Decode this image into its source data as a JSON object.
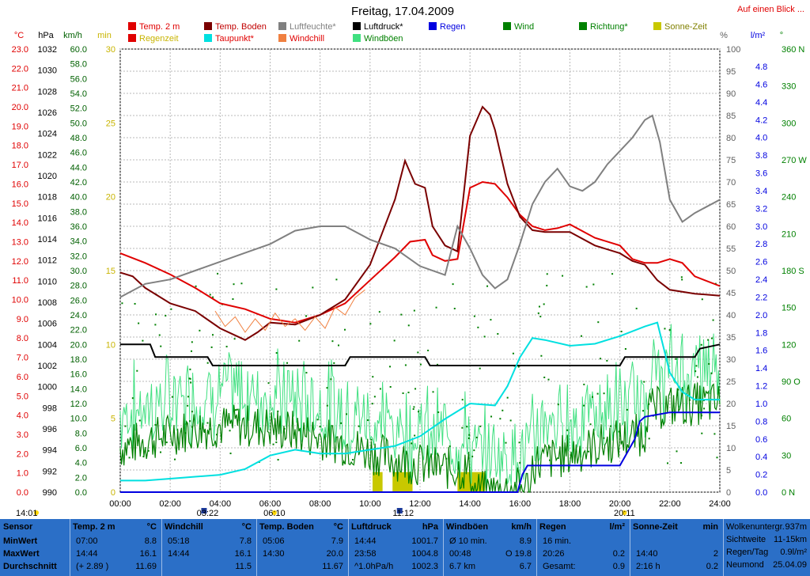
{
  "page": {
    "title": "Freitag, 17.04.2009",
    "link": "Auf einen Blick ..."
  },
  "legend": [
    {
      "label": "Temp. 2 m",
      "color": "#e00000",
      "text_color": "#e00000"
    },
    {
      "label": "Regenzeit",
      "color": "#e00000",
      "text_color": "#c8b400"
    },
    {
      "label": "Temp. Boden",
      "color": "#7a0000",
      "text_color": "#c00000"
    },
    {
      "label": "Taupunkt*",
      "color": "#00e0e0",
      "text_color": "#e00000"
    },
    {
      "label": "Luftfeuchte*",
      "color": "#808080",
      "text_color": "#808080"
    },
    {
      "label": "Windchill",
      "color": "#f08040",
      "text_color": "#e00000"
    },
    {
      "label": "Luftdruck*",
      "color": "#000000",
      "text_color": "#000000"
    },
    {
      "label": "Windböen",
      "color": "#40e080",
      "text_color": "#008000"
    },
    {
      "label": "Regen",
      "color": "#0000e0",
      "text_color": "#0000e0"
    },
    {
      "label": "Wind",
      "color": "#008000",
      "text_color": "#008000"
    },
    {
      "label": "Richtung*",
      "color": "#008000",
      "text_color": "#008000"
    },
    {
      "label": "Sonne-Zeit",
      "color": "#c8c800",
      "text_color": "#808000"
    }
  ],
  "axes": {
    "celsius": {
      "unit": "°C",
      "ticks": [
        "23.0",
        "22.0",
        "21.0",
        "20.0",
        "19.0",
        "18.0",
        "17.0",
        "16.0",
        "15.0",
        "14.0",
        "13.0",
        "12.0",
        "11.0",
        "10.0",
        "9.0",
        "8.0",
        "7.0",
        "6.0",
        "5.0",
        "4.0",
        "3.0",
        "2.0",
        "1.0",
        "0.0"
      ],
      "color": "#e00000"
    },
    "hpa": {
      "unit": "hPa",
      "ticks": [
        "1032",
        "1030",
        "1028",
        "1026",
        "1024",
        "1022",
        "1020",
        "1018",
        "1016",
        "1014",
        "1012",
        "1010",
        "1008",
        "1006",
        "1004",
        "1002",
        "1000",
        "998",
        "996",
        "994",
        "992",
        "990"
      ],
      "color": "#000000"
    },
    "kmh": {
      "unit": "km/h",
      "ticks": [
        "60.0",
        "58.0",
        "56.0",
        "54.0",
        "52.0",
        "50.0",
        "48.0",
        "46.0",
        "44.0",
        "42.0",
        "40.0",
        "38.0",
        "36.0",
        "34.0",
        "32.0",
        "30.0",
        "28.0",
        "26.0",
        "24.0",
        "22.0",
        "20.0",
        "18.0",
        "16.0",
        "14.0",
        "12.0",
        "10.0",
        "8.0",
        "6.0",
        "4.0",
        "2.0",
        "0.0"
      ],
      "color": "#006000"
    },
    "min": {
      "unit": "min",
      "ticks": [
        "30",
        "25",
        "20",
        "15",
        "10",
        "5",
        "0"
      ],
      "color": "#c8b400"
    },
    "percent": {
      "unit": "%",
      "ticks": [
        "100",
        "95",
        "90",
        "85",
        "80",
        "75",
        "70",
        "65",
        "60",
        "55",
        "50",
        "45",
        "40",
        "35",
        "30",
        "25",
        "20",
        "15",
        "10",
        "5",
        "0"
      ],
      "color": "#606060"
    },
    "rain": {
      "unit": "l/m²",
      "ticks": [
        "4.8",
        "4.6",
        "4.4",
        "4.2",
        "4.0",
        "3.8",
        "3.6",
        "3.4",
        "3.2",
        "3.0",
        "2.8",
        "2.6",
        "2.4",
        "2.2",
        "2.0",
        "1.8",
        "1.6",
        "1.4",
        "1.2",
        "1.0",
        "0.8",
        "0.6",
        "0.4",
        "0.2",
        "0.0"
      ],
      "color": "#0000e0"
    },
    "dir": {
      "unit": "°",
      "ticks": [
        "360 N",
        "330",
        "300",
        "270 W",
        "240",
        "210",
        "180 S",
        "150",
        "120",
        "90 O",
        "60",
        "30",
        "0 N"
      ],
      "color": "#008000"
    },
    "time": {
      "ticks": [
        "00:00",
        "02:00",
        "04:00",
        "06:00",
        "08:00",
        "10:00",
        "12:00",
        "14:00",
        "16:00",
        "18:00",
        "20:00",
        "22:00",
        "24:00"
      ]
    }
  },
  "markers": [
    {
      "label": "14:01",
      "type": "sun"
    },
    {
      "label": "03:22",
      "type": "moon"
    },
    {
      "label": "06:10",
      "type": "sun"
    },
    {
      "label": "11:12",
      "type": "moon"
    },
    {
      "label": "20:11",
      "type": "sun"
    }
  ],
  "chart_data": {
    "type": "line",
    "title": "Freitag, 17.04.2009",
    "x_unit": "hours",
    "xlim": [
      0,
      24
    ],
    "series": [
      {
        "name": "Temp. 2 m",
        "unit": "°C",
        "color": "#e00000",
        "points": [
          [
            0,
            12.4
          ],
          [
            1,
            11.9
          ],
          [
            2,
            11.3
          ],
          [
            3,
            10.6
          ],
          [
            4,
            9.8
          ],
          [
            5,
            9.5
          ],
          [
            6,
            9.0
          ],
          [
            7,
            8.8
          ],
          [
            8,
            9.2
          ],
          [
            9,
            9.8
          ],
          [
            10,
            11.0
          ],
          [
            11,
            12.2
          ],
          [
            11.6,
            13.0
          ],
          [
            12.2,
            13.1
          ],
          [
            12.5,
            12.3
          ],
          [
            13.0,
            12.0
          ],
          [
            13.5,
            12.1
          ],
          [
            14.0,
            15.8
          ],
          [
            14.5,
            16.1
          ],
          [
            15.0,
            16.0
          ],
          [
            15.5,
            15.3
          ],
          [
            16.0,
            14.4
          ],
          [
            16.5,
            13.8
          ],
          [
            17.0,
            13.6
          ],
          [
            17.5,
            13.7
          ],
          [
            18.0,
            13.9
          ],
          [
            19.0,
            13.2
          ],
          [
            20.0,
            12.8
          ],
          [
            20.5,
            12.1
          ],
          [
            21.0,
            11.9
          ],
          [
            21.5,
            11.9
          ],
          [
            22.0,
            12.1
          ],
          [
            22.5,
            11.9
          ],
          [
            23.0,
            11.2
          ],
          [
            24.0,
            10.7
          ]
        ]
      },
      {
        "name": "Temp. Boden",
        "unit": "°C",
        "color": "#7a0000",
        "points": [
          [
            0,
            11.4
          ],
          [
            0.5,
            11.2
          ],
          [
            1,
            10.6
          ],
          [
            2,
            9.8
          ],
          [
            3,
            9.4
          ],
          [
            4,
            8.5
          ],
          [
            5,
            7.9
          ],
          [
            5.5,
            8.3
          ],
          [
            6,
            8.8
          ],
          [
            7,
            8.7
          ],
          [
            8,
            9.2
          ],
          [
            9,
            10.0
          ],
          [
            10,
            11.8
          ],
          [
            10.5,
            13.5
          ],
          [
            11.0,
            15.2
          ],
          [
            11.4,
            17.2
          ],
          [
            11.8,
            16.0
          ],
          [
            12.2,
            15.8
          ],
          [
            12.5,
            13.8
          ],
          [
            13.0,
            12.8
          ],
          [
            13.5,
            12.5
          ],
          [
            14.0,
            18.5
          ],
          [
            14.5,
            20.0
          ],
          [
            14.8,
            19.6
          ],
          [
            15.0,
            18.8
          ],
          [
            15.5,
            16.0
          ],
          [
            16.0,
            14.3
          ],
          [
            16.5,
            13.6
          ],
          [
            17.0,
            13.5
          ],
          [
            18.0,
            13.5
          ],
          [
            19.0,
            12.8
          ],
          [
            20.0,
            12.4
          ],
          [
            20.5,
            12.0
          ],
          [
            21.0,
            11.8
          ],
          [
            21.5,
            11.0
          ],
          [
            22.0,
            10.5
          ],
          [
            23.0,
            10.3
          ],
          [
            24.0,
            10.2
          ]
        ]
      },
      {
        "name": "Luftfeuchte*",
        "unit": "%",
        "color": "#808080",
        "points": [
          [
            0,
            44
          ],
          [
            1,
            47
          ],
          [
            2,
            48
          ],
          [
            3,
            50
          ],
          [
            4,
            52
          ],
          [
            5,
            54
          ],
          [
            6,
            56
          ],
          [
            7,
            59
          ],
          [
            8,
            60
          ],
          [
            9,
            60
          ],
          [
            10,
            57
          ],
          [
            11,
            55
          ],
          [
            12,
            51
          ],
          [
            13,
            49
          ],
          [
            13.5,
            60
          ],
          [
            14.0,
            55
          ],
          [
            14.5,
            49
          ],
          [
            15.0,
            46
          ],
          [
            15.5,
            48
          ],
          [
            16.0,
            56
          ],
          [
            16.5,
            65
          ],
          [
            17.0,
            70
          ],
          [
            17.5,
            73
          ],
          [
            18.0,
            69
          ],
          [
            18.5,
            68
          ],
          [
            19.0,
            70
          ],
          [
            19.5,
            74
          ],
          [
            20.0,
            77
          ],
          [
            20.5,
            80
          ],
          [
            21.0,
            84
          ],
          [
            21.3,
            85
          ],
          [
            21.6,
            79
          ],
          [
            22.0,
            66
          ],
          [
            22.5,
            61
          ],
          [
            23.0,
            63
          ],
          [
            24.0,
            66
          ]
        ]
      },
      {
        "name": "Windchill",
        "unit": "°C",
        "color": "#f08040",
        "points": [
          [
            3.8,
            9.4
          ],
          [
            4.2,
            8.6
          ],
          [
            4.6,
            9.1
          ],
          [
            5.0,
            8.3
          ],
          [
            5.4,
            9.0
          ],
          [
            5.8,
            8.4
          ],
          [
            6.2,
            9.3
          ],
          [
            6.6,
            8.6
          ],
          [
            7.0,
            9.0
          ],
          [
            7.4,
            8.4
          ],
          [
            7.8,
            9.1
          ],
          [
            8.2,
            8.5
          ],
          [
            8.6,
            9.6
          ],
          [
            9.0,
            9.2
          ],
          [
            9.4,
            10.1
          ],
          [
            9.8,
            10.5
          ]
        ]
      },
      {
        "name": "Luftdruck*",
        "unit": "hPa",
        "color": "#000000",
        "points": [
          [
            0,
            1004.0
          ],
          [
            1.2,
            1004.0
          ],
          [
            1.4,
            1002.8
          ],
          [
            3.5,
            1002.8
          ],
          [
            3.7,
            1002.0
          ],
          [
            9.0,
            1002.0
          ],
          [
            9.2,
            1002.8
          ],
          [
            12.2,
            1002.8
          ],
          [
            12.4,
            1002.0
          ],
          [
            20.0,
            1002.0
          ],
          [
            20.2,
            1002.8
          ],
          [
            23.0,
            1002.8
          ],
          [
            23.2,
            1003.6
          ],
          [
            24.0,
            1004.0
          ]
        ]
      },
      {
        "name": "Taupunkt*",
        "unit": "°C",
        "color": "#00e0e0",
        "points": [
          [
            0,
            0.6
          ],
          [
            1,
            0.6
          ],
          [
            2,
            0.7
          ],
          [
            3,
            0.8
          ],
          [
            4,
            0.9
          ],
          [
            5,
            1.2
          ],
          [
            6,
            1.9
          ],
          [
            7,
            2.2
          ],
          [
            8,
            2.0
          ],
          [
            9,
            2.0
          ],
          [
            10,
            2.2
          ],
          [
            11,
            2.4
          ],
          [
            12,
            2.9
          ],
          [
            13,
            3.8
          ],
          [
            14,
            4.6
          ],
          [
            15,
            4.5
          ],
          [
            15.5,
            5.5
          ],
          [
            16.0,
            7.0
          ],
          [
            16.5,
            8.0
          ],
          [
            17.0,
            7.9
          ],
          [
            18.0,
            7.6
          ],
          [
            19.0,
            7.7
          ],
          [
            20.0,
            8.1
          ],
          [
            21.0,
            8.6
          ],
          [
            21.5,
            8.8
          ],
          [
            22.0,
            6.2
          ],
          [
            22.5,
            5.2
          ],
          [
            23.0,
            4.8
          ],
          [
            24.0,
            4.8
          ]
        ]
      },
      {
        "name": "Regen",
        "unit": "l/m²",
        "color": "#0000e0",
        "points": [
          [
            0,
            0
          ],
          [
            15.9,
            0
          ],
          [
            16.0,
            0.1
          ],
          [
            16.1,
            0.2
          ],
          [
            16.3,
            0.3
          ],
          [
            20.0,
            0.3
          ],
          [
            20.2,
            0.4
          ],
          [
            20.4,
            0.5
          ],
          [
            20.6,
            0.6
          ],
          [
            20.8,
            0.8
          ],
          [
            21.0,
            0.85
          ],
          [
            22.0,
            0.9
          ],
          [
            24.0,
            0.9
          ]
        ]
      }
    ],
    "wind": {
      "name": "Wind",
      "unit": "km/h",
      "color": "#008000"
    },
    "gusts": {
      "name": "Windböen",
      "unit": "km/h",
      "color": "#40e080"
    },
    "sunshine_intervals": [
      [
        10.1,
        10.5
      ],
      [
        10.9,
        11.7
      ],
      [
        13.5,
        14.6
      ]
    ]
  },
  "table": {
    "sensor": {
      "header": "Sensor",
      "rows": [
        "MinWert",
        "MaxWert",
        "Durchschnitt"
      ]
    },
    "temp2m": {
      "header": "Temp. 2 m",
      "unit": "°C",
      "rows": [
        [
          "07:00",
          "8.8"
        ],
        [
          "14:44",
          "16.1"
        ],
        [
          "(+ 2.89 )",
          "11.69"
        ]
      ]
    },
    "windchill": {
      "header": "Windchill",
      "unit": "°C",
      "rows": [
        [
          "05:18",
          "7.8"
        ],
        [
          "14:44",
          "16.1"
        ],
        [
          "",
          "11.5"
        ]
      ]
    },
    "boden": {
      "header": "Temp. Boden",
      "unit": "°C",
      "rows": [
        [
          "05:06",
          "7.9"
        ],
        [
          "14:30",
          "20.0"
        ],
        [
          "",
          "11.67"
        ]
      ]
    },
    "druck": {
      "header": "Luftdruck",
      "unit": "hPa",
      "rows": [
        [
          "14:44",
          "1001.7"
        ],
        [
          "23:58",
          "1004.8"
        ],
        [
          "^1.0hPa/h",
          "1002.3"
        ]
      ]
    },
    "boeen": {
      "header": "Windböen",
      "unit": "km/h",
      "rows": [
        [
          "Ø 10 min.",
          "8.9"
        ],
        [
          "00:48",
          "O 19.8"
        ],
        [
          "6.7 km",
          "6.7"
        ]
      ]
    },
    "regen": {
      "header": "Regen",
      "unit": "l/m²",
      "rows": [
        [
          "16 min.",
          ""
        ],
        [
          "20:26",
          "0.2"
        ],
        [
          "Gesamt:",
          "0.9"
        ]
      ]
    },
    "sonne": {
      "header": "Sonne-Zeit",
      "unit": "min",
      "rows": [
        [
          "",
          ""
        ],
        [
          "14:40",
          "2"
        ],
        [
          "2:16 h",
          "0.2"
        ]
      ]
    },
    "extra": {
      "rows": [
        [
          "Wolkenuntergr.",
          "937m"
        ],
        [
          "Sichtweite",
          "11-15km"
        ],
        [
          "Regen/Tag",
          "0.9l/m²"
        ],
        [
          "Neumond",
          "25.04.09"
        ]
      ]
    }
  }
}
